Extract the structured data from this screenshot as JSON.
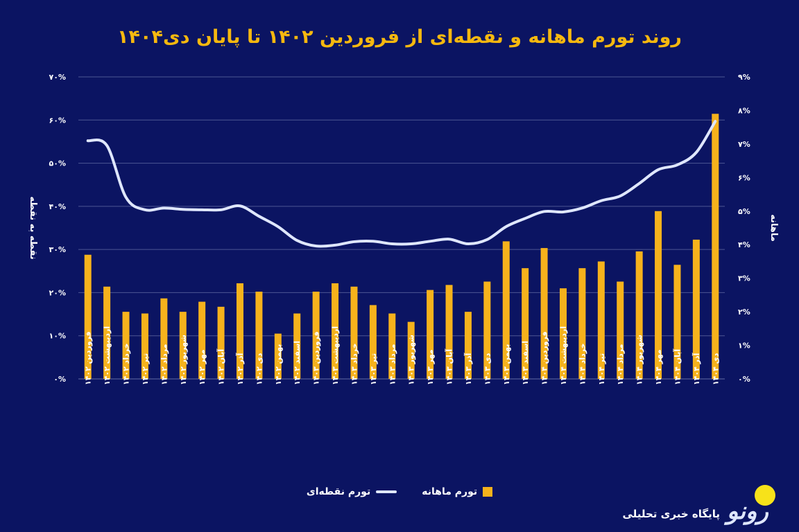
{
  "title": "روند تورم ماهانه و نقطه‌ای از فروردین ۱۴۰۲ تا پایان دی۱۴۰۴",
  "legend": {
    "line_label": "تورم نقطه‌ای",
    "bar_label": "تورم ماهانه"
  },
  "logo": {
    "name": "رونو",
    "tagline": "پایگاه خبری تحلیلی"
  },
  "colors": {
    "background": "#0b1462",
    "bar": "#f6b21c",
    "line": "#dfe7ff",
    "title": "#f6b80f"
  },
  "chart_data": {
    "type": "bar+line",
    "title": "روند تورم ماهانه و نقطه‌ای از فروردین ۱۴۰۲ تا پایان دی۱۴۰۴",
    "ylabel_left": "نقطه به نقطه",
    "ylabel_right": "ماهانه",
    "ylim_left": [
      0,
      70
    ],
    "ylim_right": [
      0,
      9
    ],
    "yticks_left": [
      "۰%",
      "۱۰%",
      "۲۰%",
      "۳۰%",
      "۴۰%",
      "۵۰%",
      "۶۰%",
      "۷۰%"
    ],
    "yticks_right": [
      "۰%",
      "۱%",
      "۲%",
      "۳%",
      "۴%",
      "۵%",
      "۶%",
      "۷%",
      "۸%",
      "۹%"
    ],
    "grid": true,
    "legend_position": "bottom",
    "categories": [
      "فروردین ۱۴۰۲",
      "اردیبهشت ۱۴۰۲",
      "خرداد ۱۴۰۲",
      "تیر ۱۴۰۲",
      "مرداد ۱۴۰۲",
      "شهریور ۱۴۰۲",
      "مهر ۱۴۰۲",
      "آبان ۱۴۰۲",
      "آذر ۱۴۰۲",
      "دی ۱۴۰۲",
      "بهمن ۱۴۰۲",
      "اسفند ۱۴۰۲",
      "فروردین ۱۴۰۳",
      "اردیبهشت ۱۴۰۳",
      "خرداد ۱۴۰۳",
      "تیر ۱۴۰۳",
      "مرداد ۱۴۰۳",
      "شهریور ۱۴۰۳",
      "مهر ۱۴۰۳",
      "آبان ۱۴۰۳",
      "آذر ۱۴۰۳",
      "دی ۱۴۰۳",
      "بهمن ۱۴۰۳",
      "اسفند ۱۴۰۳",
      "فروردین ۱۴۰۴",
      "اردیبهشت ۱۴۰۴",
      "خرداد ۱۴۰۴",
      "تیر ۱۴۰۴",
      "مرداد ۱۴۰۴",
      "شهریور ۱۴۰۴",
      "مهر ۱۴۰۴",
      "آبان ۱۴۰۴",
      "آذر ۱۴۰۴",
      "دی ۱۴۰۴"
    ],
    "series": [
      {
        "name": "تورم ماهانه",
        "type": "bar",
        "axis": "right",
        "values": [
          3.7,
          2.75,
          2.0,
          1.95,
          2.4,
          2.0,
          2.3,
          2.15,
          2.85,
          2.6,
          1.35,
          1.95,
          2.6,
          2.85,
          2.75,
          2.2,
          1.95,
          1.7,
          2.65,
          2.8,
          2.0,
          2.9,
          4.1,
          3.3,
          3.9,
          2.7,
          3.3,
          3.5,
          2.9,
          3.8,
          5.0,
          3.4,
          4.15,
          7.9
        ]
      },
      {
        "name": "تورم نقطه‌ای",
        "type": "line",
        "axis": "left",
        "values": [
          55.2,
          54.1,
          42.1,
          39.2,
          39.6,
          39.3,
          39.2,
          39.2,
          40.1,
          37.7,
          35.3,
          32.1,
          30.8,
          31.0,
          31.8,
          31.9,
          31.3,
          31.3,
          31.9,
          32.4,
          31.3,
          32.3,
          35.3,
          37.2,
          38.8,
          38.7,
          39.6,
          41.3,
          42.4,
          45.3,
          48.5,
          49.6,
          52.5,
          59.7
        ]
      }
    ]
  }
}
